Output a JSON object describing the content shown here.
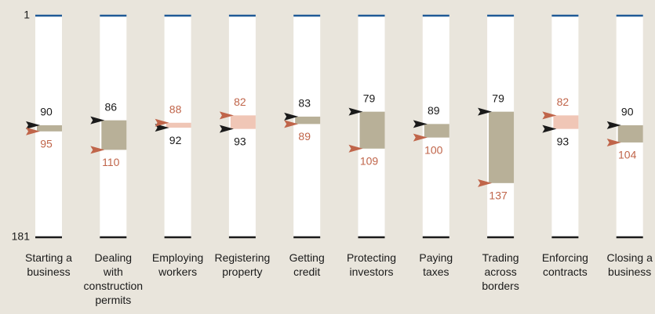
{
  "chart_data": {
    "type": "rank-range",
    "categories": [
      "Starting a\nbusiness",
      "Dealing\nwith\nconstruction\npermits",
      "Employing\nworkers",
      "Registering\nproperty",
      "Getting\ncredit",
      "Protecting\ninvestors",
      "Paying\ntaxes",
      "Trading\nacross\nborders",
      "Enforcing\ncontracts",
      "Closing a\nbusiness"
    ],
    "series": [
      {
        "color": "#1a1a1a",
        "values": [
          90,
          86,
          92,
          93,
          83,
          79,
          89,
          79,
          93,
          90
        ]
      },
      {
        "color": "#c0654a",
        "values": [
          95,
          110,
          88,
          82,
          89,
          109,
          100,
          137,
          82,
          104
        ]
      }
    ],
    "worse_color": "#b8b098",
    "better_color": "#f0c6b6",
    "ylim": [
      1,
      181
    ],
    "yticks": [
      1,
      181
    ],
    "inverted": true
  }
}
